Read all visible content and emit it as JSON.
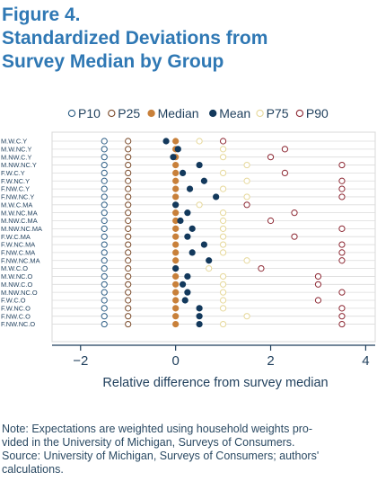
{
  "figure": {
    "title_lines": [
      "Figure 4.",
      "Standardized Deviations from",
      "Survey Median by Group"
    ]
  },
  "chart_data": {
    "type": "scatter",
    "xlabel": "Relative difference from survey median",
    "ylabel": "",
    "xlim": [
      -2.6,
      4.2
    ],
    "xticks": [
      -2,
      0,
      2,
      4
    ],
    "xtick_labels": [
      "−2",
      "0",
      "2",
      "4"
    ],
    "grid": "horizontal",
    "legend_position": "top",
    "categories": [
      "M.W.C.Y",
      "M.W.NC.Y",
      "M.NW.C.Y",
      "M.NW.NC.Y",
      "F.W.C.Y",
      "F.W.NC.Y",
      "F.NW.C.Y",
      "F.NW.NC.Y",
      "M.W.C.MA",
      "M.W.NC.MA",
      "M.NW.C.MA",
      "M.NW.NC.MA",
      "F.W.C.MA",
      "F.W.NC.MA",
      "F.NW.C.MA",
      "F.NW.NC.MA",
      "M.W.C.O",
      "M.W.NC.O",
      "M.NW.C.O",
      "M.NW.NC.O",
      "F.W.C.O",
      "F.W.NC.O",
      "F.NW.C.O",
      "F.NW.NC.O"
    ],
    "series": [
      {
        "name": "P10",
        "marker": "hollow",
        "color": "#2f5f86",
        "values": [
          -1.5,
          -1.5,
          -1.5,
          -1.5,
          -1.5,
          -1.5,
          -1.5,
          -1.5,
          -1.5,
          -1.5,
          -1.5,
          -1.5,
          -1.5,
          -1.5,
          -1.5,
          -1.5,
          -1.5,
          -1.5,
          -1.5,
          -1.5,
          -1.5,
          -1.5,
          -1.5,
          -1.5
        ]
      },
      {
        "name": "P25",
        "marker": "hollow",
        "color": "#7a4a2a",
        "values": [
          -1,
          -1,
          -1,
          -1,
          -1,
          -1,
          -1,
          -1,
          -1,
          -1,
          -1,
          -1,
          -1,
          -1,
          -1,
          -1,
          -1,
          -1,
          -1,
          -1,
          -1,
          -1,
          -1,
          -1
        ]
      },
      {
        "name": "Median",
        "marker": "filled",
        "color": "#c8803a",
        "values": [
          0,
          0,
          0,
          0,
          0,
          0,
          0,
          0,
          0,
          0,
          0,
          0,
          0,
          0,
          0,
          0,
          0,
          0,
          0,
          0,
          0,
          0,
          0,
          0
        ]
      },
      {
        "name": "Mean",
        "marker": "filled",
        "color": "#13395c",
        "values": [
          -0.2,
          0.05,
          -0.05,
          0.5,
          0.15,
          0.6,
          0.3,
          0.85,
          0,
          0.25,
          0.1,
          0.35,
          0.25,
          0.6,
          0.35,
          0.7,
          0,
          0.25,
          0.15,
          0.25,
          0.2,
          0.5,
          0.5,
          0.5
        ]
      },
      {
        "name": "P75",
        "marker": "hollow",
        "color": "#e6d89a",
        "values": [
          0.5,
          1,
          1,
          1.5,
          1,
          1.5,
          1,
          1.5,
          0.5,
          1,
          1,
          1,
          1,
          1,
          1,
          1.5,
          0.7,
          1,
          1,
          1,
          1,
          1,
          1.5,
          1
        ]
      },
      {
        "name": "P90",
        "marker": "hollow",
        "color": "#8e2a35",
        "values": [
          1,
          2.3,
          2,
          3.5,
          2.3,
          3.5,
          3.5,
          3.5,
          1.5,
          2.5,
          2,
          3.5,
          2.5,
          3.5,
          3.5,
          3.5,
          1.8,
          3,
          3,
          3.5,
          3,
          3.5,
          3.5,
          3.5
        ]
      }
    ]
  },
  "note": {
    "lines": [
      "Note: Expectations are weighted using household weights pro-",
      "vided in the University of Michigan, Surveys of Consumers.",
      "Source: University of Michigan, Surveys of Consumers; authors'",
      "calculations."
    ]
  }
}
